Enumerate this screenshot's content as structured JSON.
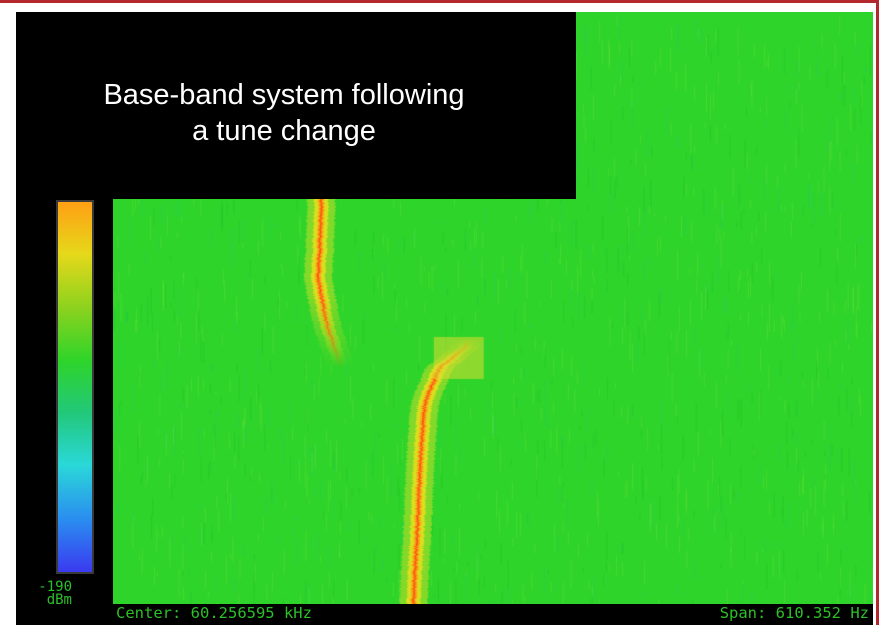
{
  "title_lines": [
    "Base-band system following",
    "a tune change"
  ],
  "colors": {
    "frame_accent": "#b3282d",
    "background": "#000000",
    "field": "#2ed42a",
    "trace_core": "#ff4a14",
    "trace_mid": "#f0e01c",
    "label_text": "#2cc028"
  },
  "chart_data": {
    "type": "heatmap",
    "title": "Base-band system following a tune change",
    "center_label": "Center: 60.256595 kHz",
    "span_label": "Span: 610.352 Hz",
    "scale": {
      "min_value": "-190",
      "min_unit": "dBm",
      "colormap": [
        "#3a3af0",
        "#2a8cf0",
        "#2ad8d8",
        "#22c87a",
        "#2ed42a",
        "#8ad21e",
        "#e6d81a",
        "#ffa014"
      ]
    },
    "signal_before": {
      "frequency_offset_of_span": [
        0.275,
        0.275,
        0.27,
        0.28,
        0.3
      ],
      "time_fraction": [
        0.0,
        0.3,
        0.45,
        0.52,
        0.6
      ]
    },
    "signal_after": {
      "frequency_offset_of_span": [
        0.47,
        0.46,
        0.43,
        0.41,
        0.405,
        0.4,
        0.395
      ],
      "time_fraction": [
        0.55,
        0.57,
        0.6,
        0.66,
        0.75,
        0.88,
        1.0
      ]
    }
  }
}
